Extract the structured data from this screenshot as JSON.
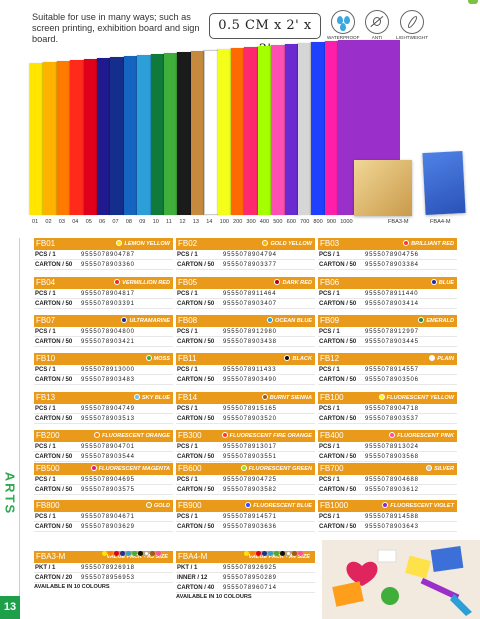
{
  "header": {
    "intro": "Suitable for use in many ways; such as screen printing, exhibition board and sign board.",
    "size": "0.5 CM x 2' x 3'",
    "features": [
      {
        "label": "WATERPROOF",
        "icon": "water-drops-icon"
      },
      {
        "label": "ANTI CHEMICAL",
        "icon": "anti-chemical-icon"
      },
      {
        "label": "LIGHTWEIGHT",
        "icon": "feather-icon"
      }
    ]
  },
  "swatch_labels": [
    "01",
    "02",
    "03",
    "04",
    "05",
    "06",
    "07",
    "08",
    "09",
    "10",
    "11",
    "12",
    "13",
    "14",
    "100",
    "200",
    "300",
    "400",
    "500",
    "600",
    "700",
    "800",
    "900",
    "1000",
    "FBA3-M",
    "FBA4-M"
  ],
  "swatch_colors": [
    "#ffe500",
    "#ffb300",
    "#ff7a00",
    "#ff2a1a",
    "#e0001b",
    "#1f1a8e",
    "#152e8c",
    "#1565c0",
    "#2c9fd9",
    "#0f7a3c",
    "#3fae3a",
    "#1b1b1b",
    "#c58a3e",
    "#ffffff",
    "#f3ff1a",
    "#ff6a00",
    "#ff2a6e",
    "#a6ff00",
    "#ff4fb2",
    "#6a2bd1",
    "#d6d6d6",
    "#2040ff",
    "#ff1ea8",
    "#9b2fc9",
    "#e2c27a",
    "#3c6fd8"
  ],
  "side": {
    "section": "ARTS",
    "page": "13"
  },
  "products": [
    {
      "code": "FB01",
      "name": "LEMON YELLOW",
      "dot": "#ffe500",
      "pcs": "9555078904787",
      "carton": "9555078903360"
    },
    {
      "code": "FB02",
      "name": "GOLD YELLOW",
      "dot": "#ffb300",
      "pcs": "9555078904794",
      "carton": "9555078903377"
    },
    {
      "code": "FB03",
      "name": "BRILLIANT RED",
      "dot": "#ff3a2a",
      "pcs": "9555078904756",
      "carton": "9555078903384"
    },
    {
      "code": "FB04",
      "name": "VERMILLION RED",
      "dot": "#e8301c",
      "pcs": "9555078904817",
      "carton": "9555078903391"
    },
    {
      "code": "FB05",
      "name": "DARK RED",
      "dot": "#b00018",
      "pcs": "9555078911464",
      "carton": "9555078903407"
    },
    {
      "code": "FB06",
      "name": "BLUE",
      "dot": "#1f2f9e",
      "pcs": "9555078911440",
      "carton": "9555078903414"
    },
    {
      "code": "FB07",
      "name": "ULTRAMARINE",
      "dot": "#1a2a8c",
      "pcs": "9555078904800",
      "carton": "9555078903421"
    },
    {
      "code": "FB08",
      "name": "OCEAN BLUE",
      "dot": "#2c9fd9",
      "pcs": "9555078912980",
      "carton": "9555078903438"
    },
    {
      "code": "FB09",
      "name": "EMERALD",
      "dot": "#1d8a45",
      "pcs": "9555078912997",
      "carton": "9555078903445"
    },
    {
      "code": "FB10",
      "name": "MOSS",
      "dot": "#3fae3a",
      "pcs": "9555078913000",
      "carton": "9555078903483"
    },
    {
      "code": "FB11",
      "name": "BLACK",
      "dot": "#111111",
      "pcs": "9555078911433",
      "carton": "9555078903490"
    },
    {
      "code": "FB12",
      "name": "PLAIN",
      "dot": "#ffffff",
      "pcs": "9555078914557",
      "carton": "9555078903506"
    },
    {
      "code": "FB13",
      "name": "SKY BLUE",
      "dot": "#66c4ef",
      "pcs": "9555078904749",
      "carton": "9555078903513"
    },
    {
      "code": "FB14",
      "name": "BURNT SIENNA",
      "dot": "#9a5a24",
      "pcs": "9555078915165",
      "carton": "9555078903520"
    },
    {
      "code": "FB100",
      "name": "FLUORESCENT YELLOW",
      "dot": "#f3ff1a",
      "pcs": "9555078904718",
      "carton": "9555078903537"
    },
    {
      "code": "FB200",
      "name": "FLUORESCENT ORANGE",
      "dot": "#ff8a00",
      "pcs": "9555078904701",
      "carton": "9555078903544"
    },
    {
      "code": "FB300",
      "name": "FLUORESCENT FIRE ORANGE",
      "dot": "#ff3b2a",
      "pcs": "9555078913017",
      "carton": "9555078903551"
    },
    {
      "code": "FB400",
      "name": "FLUORESCENT PINK",
      "dot": "#ff4fa0",
      "pcs": "9555078913024",
      "carton": "9555078903568"
    },
    {
      "code": "FB500",
      "name": "FLUORESCENT MAGENTA",
      "dot": "#e01a8c",
      "pcs": "9555078904695",
      "carton": "9555078903575"
    },
    {
      "code": "FB600",
      "name": "FLUORESCENT GREEN",
      "dot": "#8fe81a",
      "pcs": "9555078904725",
      "carton": "9555078903582"
    },
    {
      "code": "FB700",
      "name": "SILVER",
      "dot": "#c8c8c8",
      "pcs": "9555078904688",
      "carton": "9555078903612"
    },
    {
      "code": "FB800",
      "name": "GOLD",
      "dot": "#d8a93a",
      "pcs": "9555078904671",
      "carton": "9555078903629"
    },
    {
      "code": "FB900",
      "name": "FLUORESCENT BLUE",
      "dot": "#2a4fff",
      "pcs": "9555078914571",
      "carton": "9555078903636"
    },
    {
      "code": "FB1000",
      "name": "FLUORESCENT VIOLET",
      "dot": "#8a2bd1",
      "pcs": "9555078914588",
      "carton": "9555078903643"
    }
  ],
  "row_labels": {
    "pcs": "PCS / 1",
    "carton": "CARTON / 50"
  },
  "packs": [
    {
      "code": "FBA3-M",
      "name": "VALUE PACK - A3 SIZE",
      "rows": [
        {
          "k": "PKT / 1",
          "v": "9555078926918"
        },
        {
          "k": "CARTON / 20",
          "v": "9555078956953"
        }
      ],
      "avail": "AVAILABLE IN 10 COLOURS"
    },
    {
      "code": "FBA4-M",
      "name": "VALUE PACK - A4 SIZE",
      "rows": [
        {
          "k": "PKT / 1",
          "v": "9555078926925"
        },
        {
          "k": "INNER / 12",
          "v": "9555078950289"
        },
        {
          "k": "CARTON / 40",
          "v": "9555078960714"
        }
      ],
      "avail": "AVAILABLE IN 10 COLOURS"
    }
  ],
  "pack_dot_colors": [
    "#ffe500",
    "#ff7a00",
    "#e0001b",
    "#1f2f9e",
    "#2c9fd9",
    "#3fae3a",
    "#111111",
    "#ffffff",
    "#9a5a24",
    "#ff4fa0"
  ]
}
